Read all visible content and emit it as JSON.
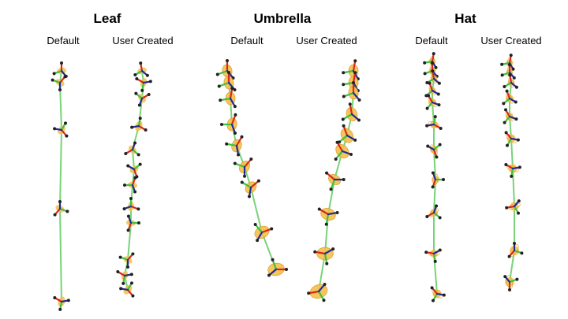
{
  "groups": [
    {
      "title": "Leaf",
      "columns": [
        "Default",
        "User Created"
      ]
    },
    {
      "title": "Umbrella",
      "columns": [
        "Default",
        "User Created"
      ]
    },
    {
      "title": "Hat",
      "columns": [
        "Default",
        "User Created"
      ]
    }
  ],
  "colors": {
    "object": "#f5c04a",
    "object_edge": "#d99a2b",
    "axis_x": "#d9281c",
    "axis_y": "#3ec13e",
    "axis_z": "#1f2c9c",
    "joint": "#222222"
  },
  "legend_semantics": {
    "trajectory": "falling-object-pose-sequence",
    "axes": [
      "x-axis",
      "y-axis",
      "z-axis"
    ]
  }
}
